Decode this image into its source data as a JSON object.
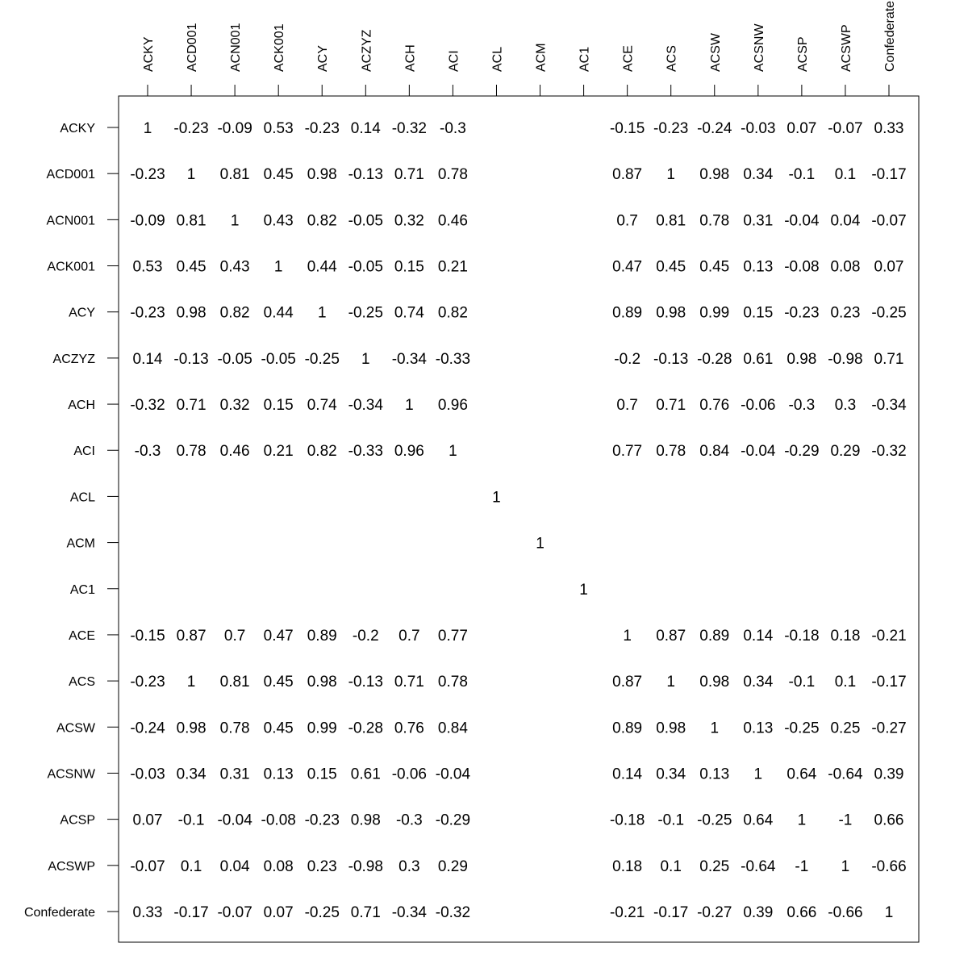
{
  "chart_data": {
    "type": "table",
    "title": "",
    "labels": [
      "ACKY",
      "ACD001",
      "ACN001",
      "ACK001",
      "ACY",
      "ACZYZ",
      "ACH",
      "ACI",
      "ACL",
      "ACM",
      "AC1",
      "ACE",
      "ACS",
      "ACSW",
      "ACSNW",
      "ACSP",
      "ACSWP",
      "Confederate"
    ],
    "matrix": [
      [
        "1",
        "-0.23",
        "-0.09",
        "0.53",
        "-0.23",
        "0.14",
        "-0.32",
        "-0.3",
        "",
        "",
        "",
        "-0.15",
        "-0.23",
        "-0.24",
        "-0.03",
        "0.07",
        "-0.07",
        "0.33"
      ],
      [
        "-0.23",
        "1",
        "0.81",
        "0.45",
        "0.98",
        "-0.13",
        "0.71",
        "0.78",
        "",
        "",
        "",
        "0.87",
        "1",
        "0.98",
        "0.34",
        "-0.1",
        "0.1",
        "-0.17"
      ],
      [
        "-0.09",
        "0.81",
        "1",
        "0.43",
        "0.82",
        "-0.05",
        "0.32",
        "0.46",
        "",
        "",
        "",
        "0.7",
        "0.81",
        "0.78",
        "0.31",
        "-0.04",
        "0.04",
        "-0.07"
      ],
      [
        "0.53",
        "0.45",
        "0.43",
        "1",
        "0.44",
        "-0.05",
        "0.15",
        "0.21",
        "",
        "",
        "",
        "0.47",
        "0.45",
        "0.45",
        "0.13",
        "-0.08",
        "0.08",
        "0.07"
      ],
      [
        "-0.23",
        "0.98",
        "0.82",
        "0.44",
        "1",
        "-0.25",
        "0.74",
        "0.82",
        "",
        "",
        "",
        "0.89",
        "0.98",
        "0.99",
        "0.15",
        "-0.23",
        "0.23",
        "-0.25"
      ],
      [
        "0.14",
        "-0.13",
        "-0.05",
        "-0.05",
        "-0.25",
        "1",
        "-0.34",
        "-0.33",
        "",
        "",
        "",
        "-0.2",
        "-0.13",
        "-0.28",
        "0.61",
        "0.98",
        "-0.98",
        "0.71"
      ],
      [
        "-0.32",
        "0.71",
        "0.32",
        "0.15",
        "0.74",
        "-0.34",
        "1",
        "0.96",
        "",
        "",
        "",
        "0.7",
        "0.71",
        "0.76",
        "-0.06",
        "-0.3",
        "0.3",
        "-0.34"
      ],
      [
        "-0.3",
        "0.78",
        "0.46",
        "0.21",
        "0.82",
        "-0.33",
        "0.96",
        "1",
        "",
        "",
        "",
        "0.77",
        "0.78",
        "0.84",
        "-0.04",
        "-0.29",
        "0.29",
        "-0.32"
      ],
      [
        "",
        "",
        "",
        "",
        "",
        "",
        "",
        "",
        "1",
        "",
        "",
        "",
        "",
        "",
        "",
        "",
        "",
        ""
      ],
      [
        "",
        "",
        "",
        "",
        "",
        "",
        "",
        "",
        "",
        "1",
        "",
        "",
        "",
        "",
        "",
        "",
        "",
        ""
      ],
      [
        "",
        "",
        "",
        "",
        "",
        "",
        "",
        "",
        "",
        "",
        "1",
        "",
        "",
        "",
        "",
        "",
        "",
        ""
      ],
      [
        "-0.15",
        "0.87",
        "0.7",
        "0.47",
        "0.89",
        "-0.2",
        "0.7",
        "0.77",
        "",
        "",
        "",
        "1",
        "0.87",
        "0.89",
        "0.14",
        "-0.18",
        "0.18",
        "-0.21"
      ],
      [
        "-0.23",
        "1",
        "0.81",
        "0.45",
        "0.98",
        "-0.13",
        "0.71",
        "0.78",
        "",
        "",
        "",
        "0.87",
        "1",
        "0.98",
        "0.34",
        "-0.1",
        "0.1",
        "-0.17"
      ],
      [
        "-0.24",
        "0.98",
        "0.78",
        "0.45",
        "0.99",
        "-0.28",
        "0.76",
        "0.84",
        "",
        "",
        "",
        "0.89",
        "0.98",
        "1",
        "0.13",
        "-0.25",
        "0.25",
        "-0.27"
      ],
      [
        "-0.03",
        "0.34",
        "0.31",
        "0.13",
        "0.15",
        "0.61",
        "-0.06",
        "-0.04",
        "",
        "",
        "",
        "0.14",
        "0.34",
        "0.13",
        "1",
        "0.64",
        "-0.64",
        "0.39"
      ],
      [
        "0.07",
        "-0.1",
        "-0.04",
        "-0.08",
        "-0.23",
        "0.98",
        "-0.3",
        "-0.29",
        "",
        "",
        "",
        "-0.18",
        "-0.1",
        "-0.25",
        "0.64",
        "1",
        "-1",
        "0.66"
      ],
      [
        "-0.07",
        "0.1",
        "0.04",
        "0.08",
        "0.23",
        "-0.98",
        "0.3",
        "0.29",
        "",
        "",
        "",
        "0.18",
        "0.1",
        "0.25",
        "-0.64",
        "-1",
        "1",
        "-0.66"
      ],
      [
        "0.33",
        "-0.17",
        "-0.07",
        "0.07",
        "-0.25",
        "0.71",
        "-0.34",
        "-0.32",
        "",
        "",
        "",
        "-0.21",
        "-0.17",
        "-0.27",
        "0.39",
        "0.66",
        "-0.66",
        "1"
      ]
    ],
    "grid": false,
    "legend": "none"
  }
}
